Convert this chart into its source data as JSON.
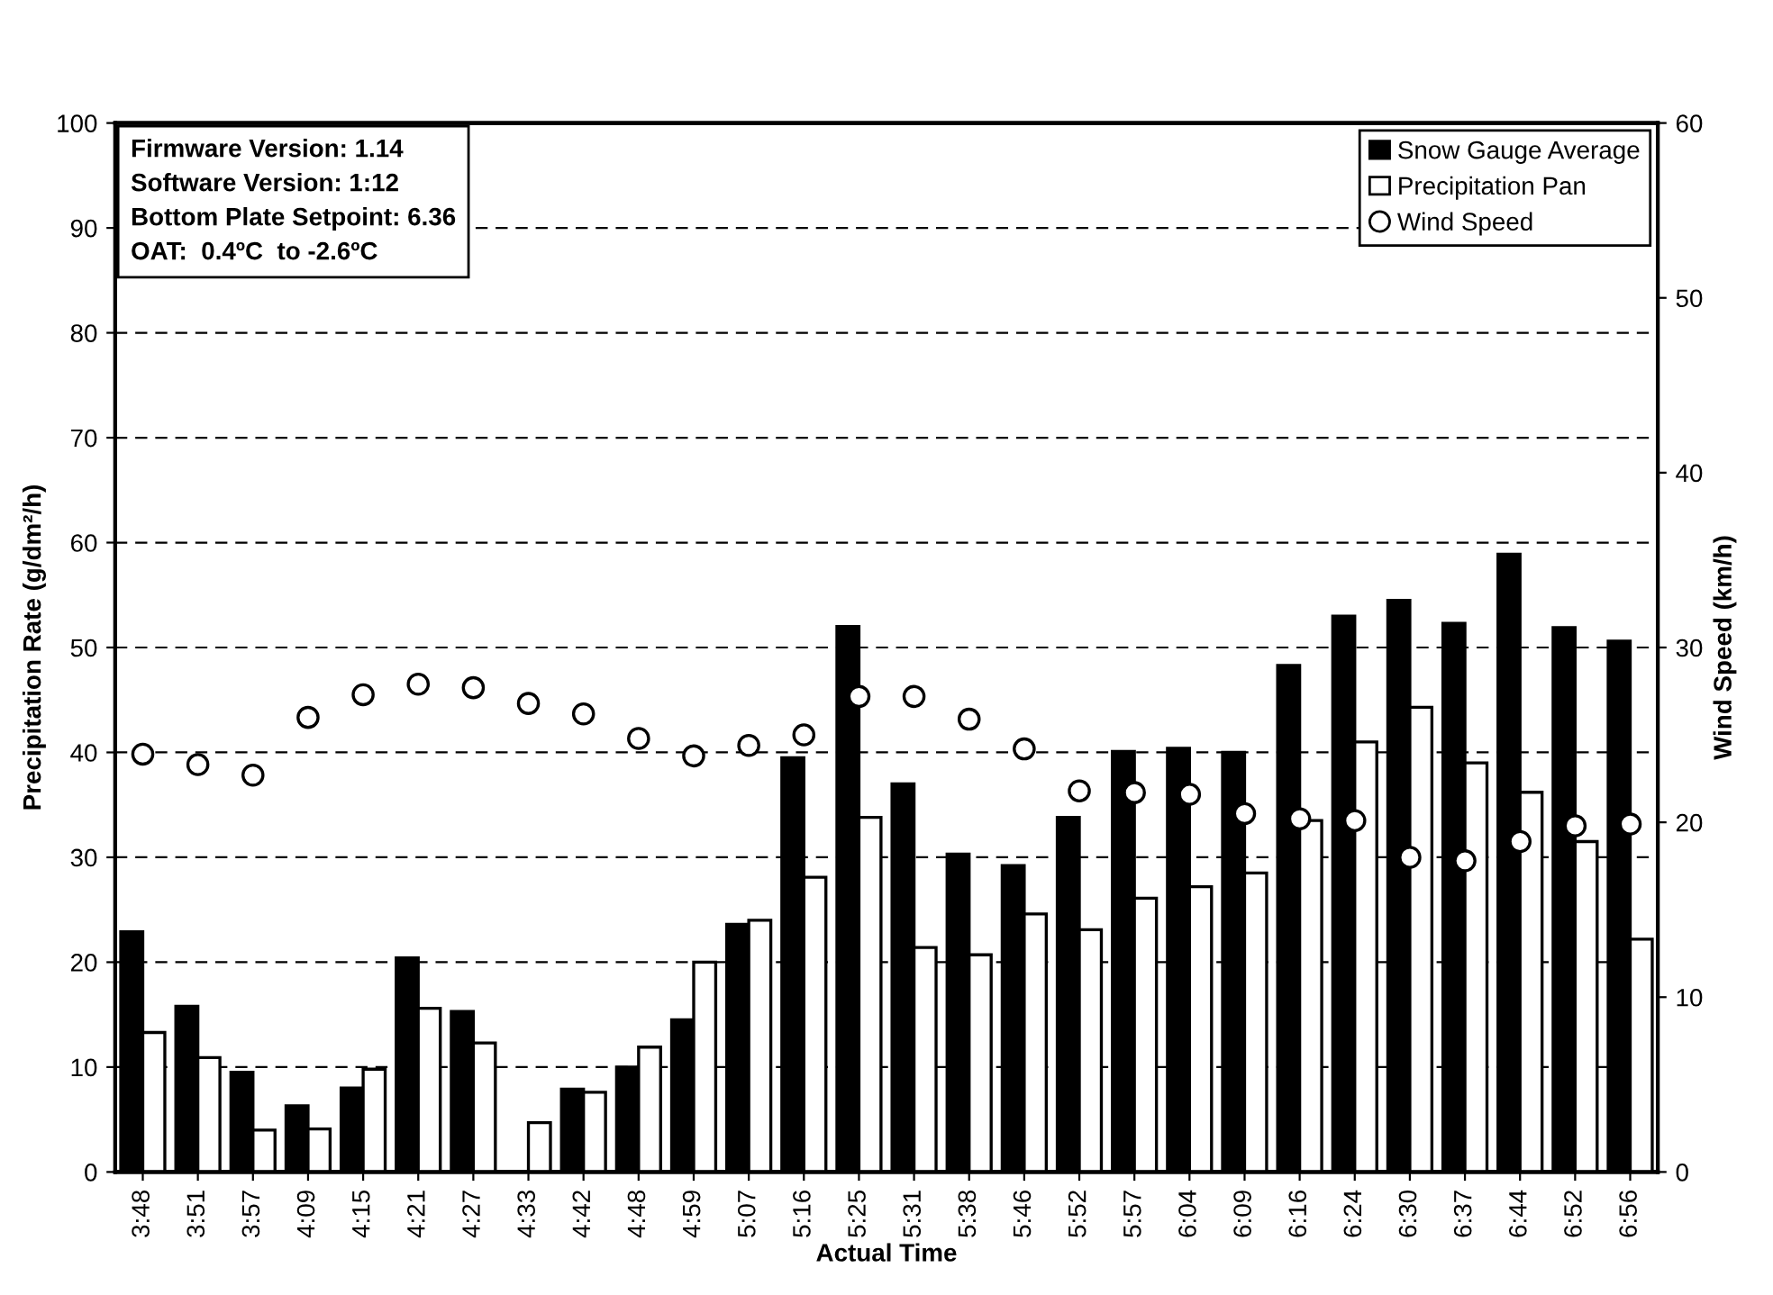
{
  "chart_data": {
    "type": "bar",
    "xlabel": "Actual Time",
    "ylabel": "Precipitation Rate (g/dm²/h)",
    "y2label": "Wind Speed (km/h)",
    "categories": [
      "3:48",
      "3:51",
      "3:57",
      "4:09",
      "4:15",
      "4:21",
      "4:27",
      "4:33",
      "4:42",
      "4:48",
      "4:59",
      "5:07",
      "5:16",
      "5:25",
      "5:31",
      "5:38",
      "5:46",
      "5:52",
      "5:57",
      "6:04",
      "6:09",
      "6:16",
      "6:24",
      "6:30",
      "6:37",
      "6:44",
      "6:52",
      "6:56"
    ],
    "series": [
      {
        "name": "Snow Gauge Average",
        "color": "#000000",
        "values": [
          22.9,
          15.8,
          9.5,
          6.3,
          8.0,
          20.4,
          15.3,
          0,
          7.9,
          10.0,
          14.5,
          23.6,
          39.5,
          52.0,
          37.0,
          30.3,
          29.2,
          33.8,
          40.1,
          40.4,
          40.0,
          48.3,
          53.0,
          54.5,
          52.3,
          58.9,
          51.9,
          50.6
        ]
      },
      {
        "name": "Precipitation Pan",
        "color": "#ffffff",
        "values": [
          13.3,
          10.9,
          4.0,
          4.1,
          9.8,
          15.6,
          12.3,
          4.7,
          7.6,
          11.9,
          20.0,
          24.0,
          28.1,
          33.8,
          21.4,
          20.7,
          24.6,
          23.1,
          26.1,
          27.2,
          28.5,
          33.5,
          41.0,
          44.3,
          39.0,
          36.2,
          31.5,
          22.2
        ]
      },
      {
        "name": "Wind Speed",
        "type": "scatter",
        "axis": "y2",
        "marker": "circle",
        "color": "#ffffff",
        "values": [
          23.9,
          23.3,
          22.7,
          26.0,
          27.3,
          27.9,
          27.7,
          26.8,
          26.2,
          24.8,
          23.8,
          24.4,
          25.0,
          27.2,
          27.2,
          25.9,
          24.2,
          21.8,
          21.7,
          21.6,
          20.5,
          20.2,
          20.1,
          18.0,
          17.8,
          18.9,
          19.8,
          19.9
        ]
      }
    ],
    "ylim": [
      0,
      100
    ],
    "yticks": [
      0,
      10,
      20,
      30,
      40,
      50,
      60,
      70,
      80,
      90,
      100
    ],
    "y2lim": [
      0,
      60
    ],
    "y2ticks": [
      0,
      10,
      20,
      30,
      40,
      50,
      60
    ],
    "grid": "y",
    "legend": "top right",
    "annotations": [
      "Firmware Version: 1.14\nSoftware Version: 1:12\nBottom Plate Setpoint: 6.36\nOAT:  0.4ºC  to -2.6ºC"
    ]
  }
}
